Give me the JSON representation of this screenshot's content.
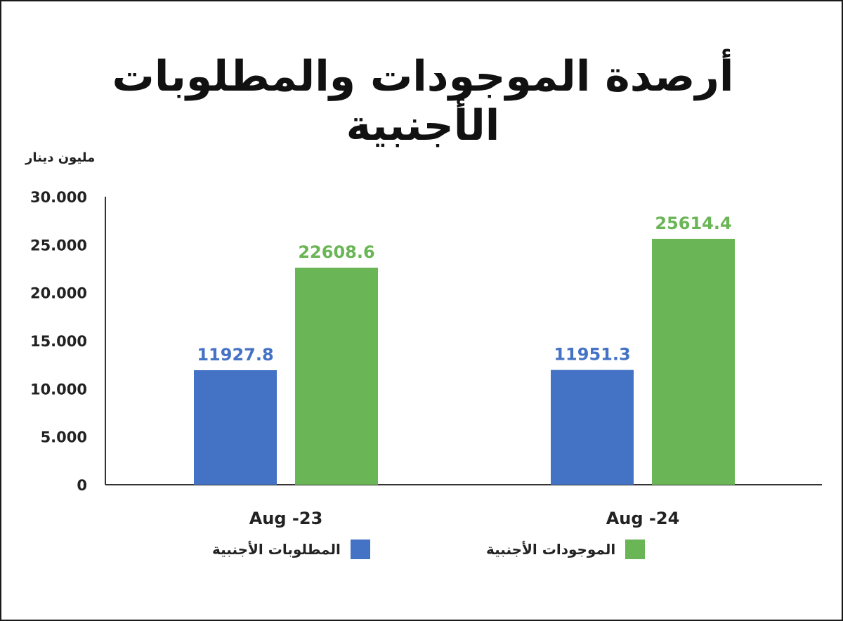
{
  "chart_data": {
    "type": "bar",
    "title": "أرصدة الموجودات والمطلوبات الأجنبية",
    "unit_label": "مليون دينار",
    "categories": [
      "Aug -23",
      "Aug -24"
    ],
    "series": [
      {
        "name": "المطلوبات الأجنبية",
        "values": [
          11927.8,
          11951.3
        ],
        "labels": [
          "11927.8",
          "11951.3"
        ],
        "color": "#4472C4"
      },
      {
        "name": "الموجودات الأجنبية",
        "values": [
          22608.6,
          25614.4
        ],
        "labels": [
          "22608.6",
          "25614.4"
        ],
        "color": "#6AB555"
      }
    ],
    "ylim": [
      0,
      30000
    ],
    "yticks": [
      0,
      5000,
      10000,
      15000,
      20000,
      25000,
      30000
    ],
    "ytick_labels": [
      "0",
      "5.000",
      "10.000",
      "15.000",
      "20.000",
      "25.000",
      "30.000"
    ],
    "grid": false,
    "legend_position": "bottom"
  }
}
